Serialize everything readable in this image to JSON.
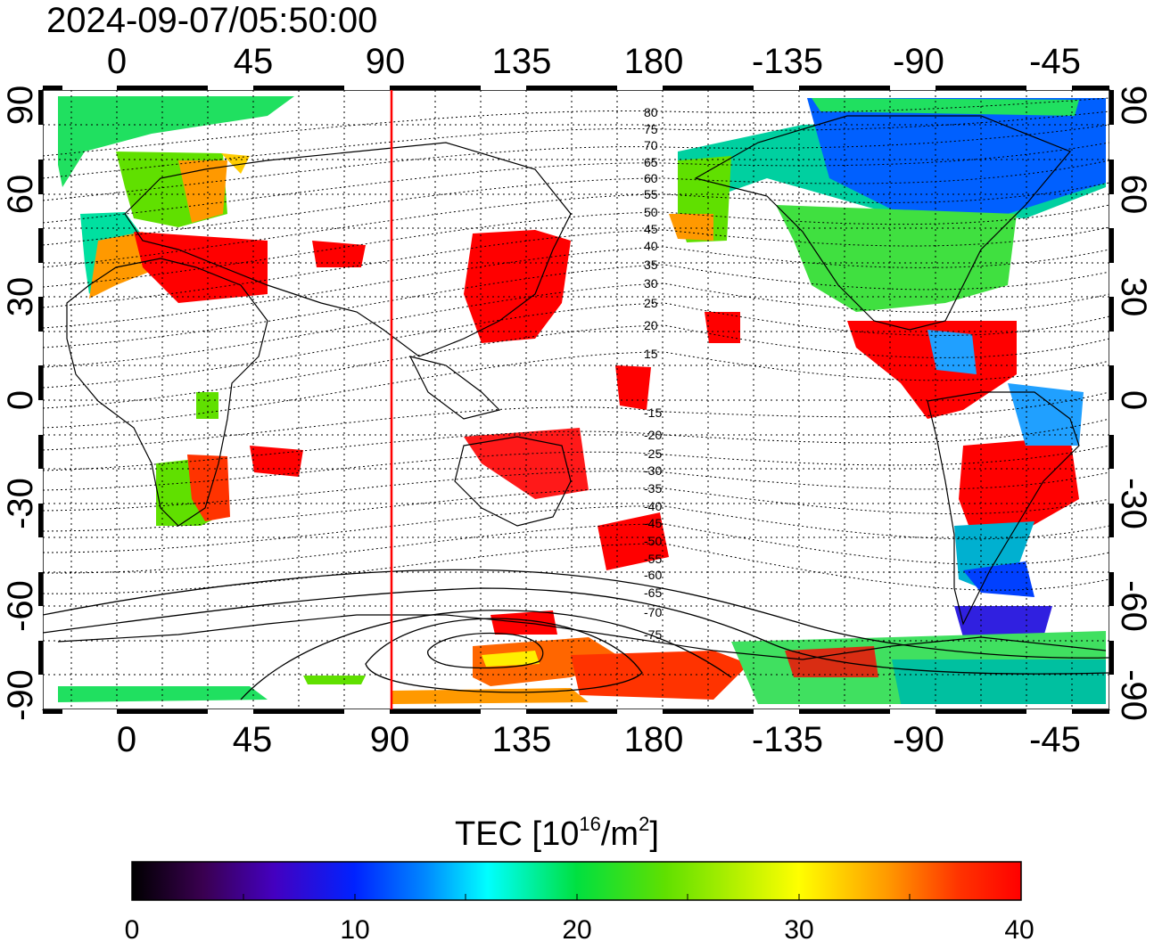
{
  "title": "2024-09-07/05:50:00",
  "map": {
    "lon_ticks": [
      "0",
      "45",
      "90",
      "135",
      "180",
      "-135",
      "-90",
      "-45"
    ],
    "lat_ticks_left": [
      "90",
      "60",
      "30",
      "0",
      "-30",
      "-60",
      "-90"
    ],
    "lat_ticks_right": [
      "90",
      "60",
      "30",
      "0",
      "-30",
      "-60",
      "-90"
    ],
    "contour_labels": [
      "80",
      "75",
      "70",
      "65",
      "60",
      "55",
      "50",
      "45",
      "40",
      "35",
      "30",
      "25",
      "20",
      "15",
      "-15",
      "-20",
      "-25",
      "-30",
      "-35",
      "-40",
      "-45",
      "-50",
      "-55",
      "-60",
      "-65",
      "-70",
      "-75"
    ],
    "marker_line_lon": 91.5,
    "marker_color": "#ff0000"
  },
  "colorbar": {
    "label_text": "TEC  [10",
    "label_sup1": "16",
    "label_mid": "/m",
    "label_sup2": "2",
    "label_end": "]",
    "ticks": [
      "0",
      "10",
      "20",
      "30",
      "40"
    ],
    "range": [
      0,
      40
    ]
  }
}
